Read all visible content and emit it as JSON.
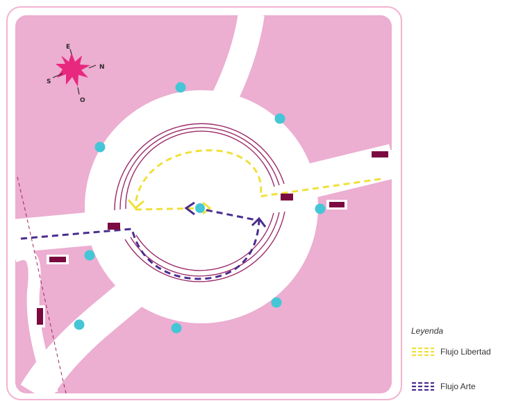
{
  "colors": {
    "background": "#ffffff",
    "frame_border": "#f2b3d0",
    "land": "#ecaed1",
    "road": "#ffffff",
    "inner_rings": "#9b2a6a",
    "flujo_libertad": "#efe13a",
    "flujo_arte": "#4a2c8f",
    "markers": "#45c6d6",
    "vehicles": "#7a0a40",
    "compass": "#e8287e",
    "side_path": "#a0245e"
  },
  "compass": {
    "icon": "compass-rose-icon",
    "north": "N",
    "south": "S",
    "east": "E",
    "west": "O"
  },
  "legend": {
    "title": "Leyenda",
    "items": [
      {
        "label": "Flujo Libertad",
        "color": "#efe13a"
      },
      {
        "label": "Flujo Arte",
        "color": "#4a2c8f"
      }
    ]
  }
}
